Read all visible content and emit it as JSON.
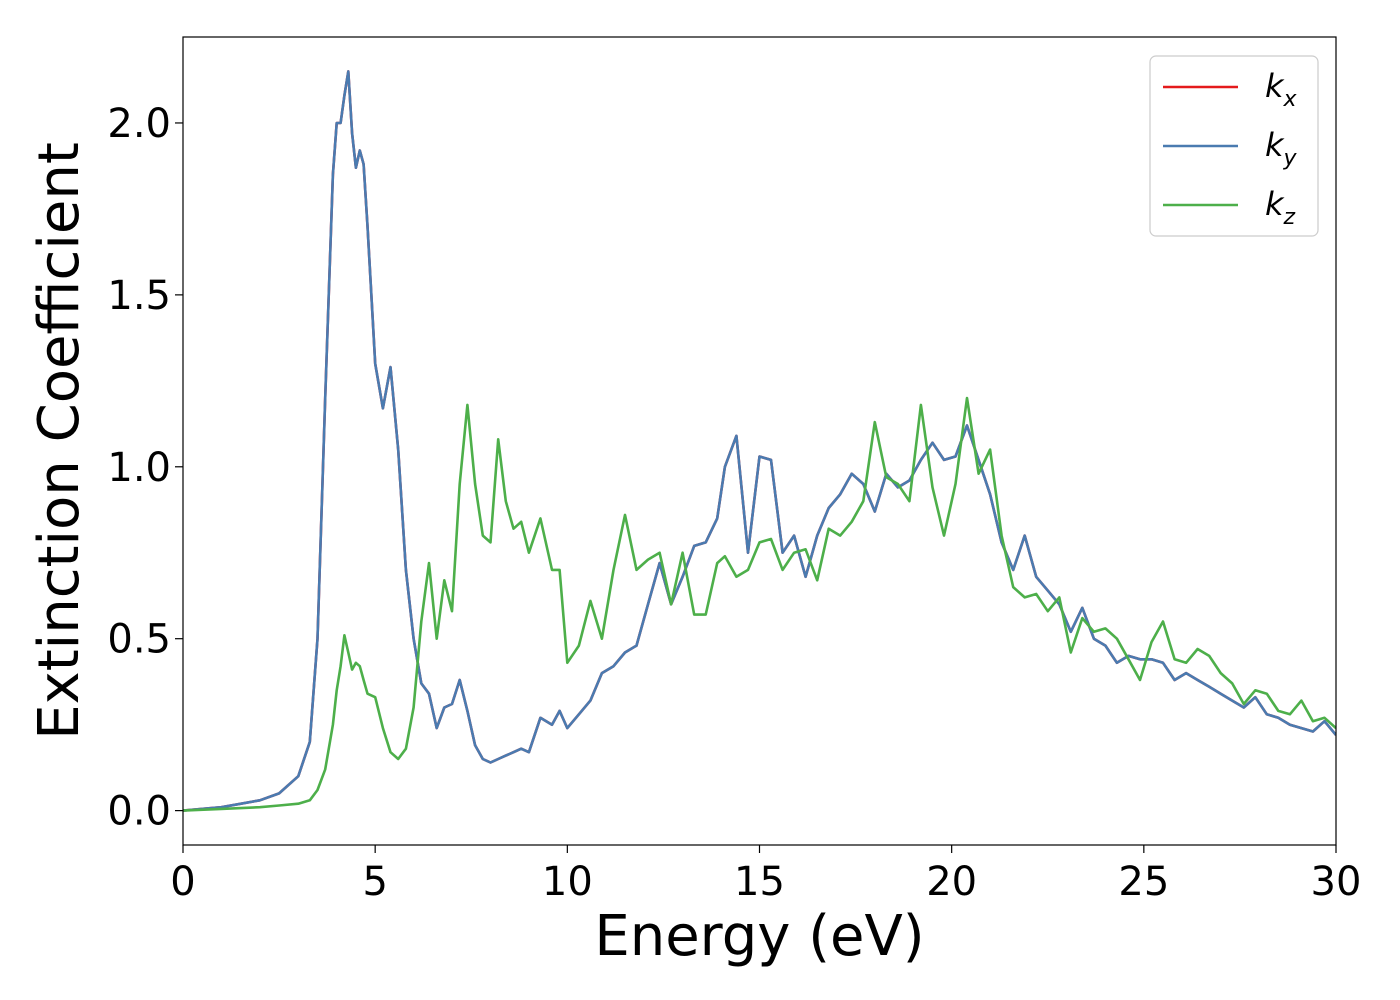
{
  "chart_data": {
    "type": "line",
    "xlabel": "Energy (eV)",
    "ylabel": "Extinction Coefficient",
    "xlim": [
      0,
      30
    ],
    "ylim": [
      -0.1,
      2.25
    ],
    "xticks": [
      0,
      5,
      10,
      15,
      20,
      25,
      30
    ],
    "xtick_labels": [
      "0",
      "5",
      "10",
      "15",
      "20",
      "25",
      "30"
    ],
    "yticks": [
      0.0,
      0.5,
      1.0,
      1.5,
      2.0
    ],
    "ytick_labels": [
      "0.0",
      "0.5",
      "1.0",
      "1.5",
      "2.0"
    ],
    "grid": false,
    "legend_position": "top-right",
    "series": [
      {
        "name": "kx",
        "legend_main": "k",
        "legend_sub": "x",
        "color": "#e41a1c",
        "x": [
          0,
          1,
          2,
          2.5,
          3,
          3.3,
          3.5,
          3.7,
          3.9,
          4.0,
          4.1,
          4.2,
          4.3,
          4.4,
          4.5,
          4.6,
          4.7,
          4.8,
          5.0,
          5.2,
          5.4,
          5.6,
          5.8,
          6.0,
          6.2,
          6.4,
          6.6,
          6.8,
          7.0,
          7.2,
          7.4,
          7.6,
          7.8,
          8.0,
          8.2,
          8.4,
          8.6,
          8.8,
          9.0,
          9.3,
          9.6,
          9.8,
          10.0,
          10.3,
          10.6,
          10.9,
          11.2,
          11.5,
          11.8,
          12.1,
          12.4,
          12.7,
          13.0,
          13.3,
          13.6,
          13.9,
          14.1,
          14.4,
          14.7,
          15.0,
          15.3,
          15.6,
          15.9,
          16.2,
          16.5,
          16.8,
          17.1,
          17.4,
          17.7,
          18.0,
          18.3,
          18.6,
          18.9,
          19.2,
          19.5,
          19.8,
          20.1,
          20.4,
          20.7,
          21.0,
          21.3,
          21.6,
          21.9,
          22.2,
          22.5,
          22.8,
          23.1,
          23.4,
          23.7,
          24.0,
          24.3,
          24.6,
          24.9,
          25.2,
          25.5,
          25.8,
          26.1,
          26.4,
          26.7,
          27.0,
          27.3,
          27.6,
          27.9,
          28.2,
          28.5,
          28.8,
          29.1,
          29.4,
          29.7,
          30.0
        ],
        "y": [
          0.0,
          0.01,
          0.03,
          0.05,
          0.1,
          0.2,
          0.5,
          1.2,
          1.85,
          2.0,
          2.0,
          2.08,
          2.15,
          1.97,
          1.87,
          1.92,
          1.88,
          1.7,
          1.3,
          1.17,
          1.29,
          1.05,
          0.7,
          0.5,
          0.37,
          0.34,
          0.24,
          0.3,
          0.31,
          0.38,
          0.29,
          0.19,
          0.15,
          0.14,
          0.15,
          0.16,
          0.17,
          0.18,
          0.17,
          0.27,
          0.25,
          0.29,
          0.24,
          0.28,
          0.32,
          0.4,
          0.42,
          0.46,
          0.48,
          0.6,
          0.72,
          0.6,
          0.68,
          0.77,
          0.78,
          0.85,
          1.0,
          1.09,
          0.75,
          1.03,
          1.02,
          0.75,
          0.8,
          0.68,
          0.8,
          0.88,
          0.92,
          0.98,
          0.95,
          0.87,
          0.98,
          0.94,
          0.96,
          1.02,
          1.07,
          1.02,
          1.03,
          1.12,
          1.02,
          0.92,
          0.78,
          0.7,
          0.8,
          0.68,
          0.64,
          0.6,
          0.52,
          0.59,
          0.5,
          0.48,
          0.43,
          0.45,
          0.44,
          0.44,
          0.43,
          0.38,
          0.4,
          0.38,
          0.36,
          0.34,
          0.32,
          0.3,
          0.33,
          0.28,
          0.27,
          0.25,
          0.24,
          0.23,
          0.26,
          0.22
        ]
      },
      {
        "name": "ky",
        "legend_main": "k",
        "legend_sub": "y",
        "color": "#4a7bb0",
        "x": [
          0,
          1,
          2,
          2.5,
          3,
          3.3,
          3.5,
          3.7,
          3.9,
          4.0,
          4.1,
          4.2,
          4.3,
          4.4,
          4.5,
          4.6,
          4.7,
          4.8,
          5.0,
          5.2,
          5.4,
          5.6,
          5.8,
          6.0,
          6.2,
          6.4,
          6.6,
          6.8,
          7.0,
          7.2,
          7.4,
          7.6,
          7.8,
          8.0,
          8.2,
          8.4,
          8.6,
          8.8,
          9.0,
          9.3,
          9.6,
          9.8,
          10.0,
          10.3,
          10.6,
          10.9,
          11.2,
          11.5,
          11.8,
          12.1,
          12.4,
          12.7,
          13.0,
          13.3,
          13.6,
          13.9,
          14.1,
          14.4,
          14.7,
          15.0,
          15.3,
          15.6,
          15.9,
          16.2,
          16.5,
          16.8,
          17.1,
          17.4,
          17.7,
          18.0,
          18.3,
          18.6,
          18.9,
          19.2,
          19.5,
          19.8,
          20.1,
          20.4,
          20.7,
          21.0,
          21.3,
          21.6,
          21.9,
          22.2,
          22.5,
          22.8,
          23.1,
          23.4,
          23.7,
          24.0,
          24.3,
          24.6,
          24.9,
          25.2,
          25.5,
          25.8,
          26.1,
          26.4,
          26.7,
          27.0,
          27.3,
          27.6,
          27.9,
          28.2,
          28.5,
          28.8,
          29.1,
          29.4,
          29.7,
          30.0
        ],
        "y": [
          0.0,
          0.01,
          0.03,
          0.05,
          0.1,
          0.2,
          0.5,
          1.2,
          1.85,
          2.0,
          2.0,
          2.08,
          2.15,
          1.97,
          1.87,
          1.92,
          1.88,
          1.7,
          1.3,
          1.17,
          1.29,
          1.05,
          0.7,
          0.5,
          0.37,
          0.34,
          0.24,
          0.3,
          0.31,
          0.38,
          0.29,
          0.19,
          0.15,
          0.14,
          0.15,
          0.16,
          0.17,
          0.18,
          0.17,
          0.27,
          0.25,
          0.29,
          0.24,
          0.28,
          0.32,
          0.4,
          0.42,
          0.46,
          0.48,
          0.6,
          0.72,
          0.6,
          0.68,
          0.77,
          0.78,
          0.85,
          1.0,
          1.09,
          0.75,
          1.03,
          1.02,
          0.75,
          0.8,
          0.68,
          0.8,
          0.88,
          0.92,
          0.98,
          0.95,
          0.87,
          0.98,
          0.94,
          0.96,
          1.02,
          1.07,
          1.02,
          1.03,
          1.12,
          1.02,
          0.92,
          0.78,
          0.7,
          0.8,
          0.68,
          0.64,
          0.6,
          0.52,
          0.59,
          0.5,
          0.48,
          0.43,
          0.45,
          0.44,
          0.44,
          0.43,
          0.38,
          0.4,
          0.38,
          0.36,
          0.34,
          0.32,
          0.3,
          0.33,
          0.28,
          0.27,
          0.25,
          0.24,
          0.23,
          0.26,
          0.22
        ]
      },
      {
        "name": "kz",
        "legend_main": "k",
        "legend_sub": "z",
        "color": "#4daf4a",
        "x": [
          0,
          1,
          2,
          2.5,
          3,
          3.3,
          3.5,
          3.7,
          3.9,
          4.0,
          4.1,
          4.2,
          4.3,
          4.4,
          4.5,
          4.6,
          4.7,
          4.8,
          5.0,
          5.2,
          5.4,
          5.6,
          5.8,
          6.0,
          6.2,
          6.4,
          6.6,
          6.8,
          7.0,
          7.2,
          7.4,
          7.6,
          7.8,
          8.0,
          8.2,
          8.4,
          8.6,
          8.8,
          9.0,
          9.3,
          9.6,
          9.8,
          10.0,
          10.3,
          10.6,
          10.9,
          11.2,
          11.5,
          11.8,
          12.1,
          12.4,
          12.7,
          13.0,
          13.3,
          13.6,
          13.9,
          14.1,
          14.4,
          14.7,
          15.0,
          15.3,
          15.6,
          15.9,
          16.2,
          16.5,
          16.8,
          17.1,
          17.4,
          17.7,
          18.0,
          18.3,
          18.6,
          18.9,
          19.2,
          19.5,
          19.8,
          20.1,
          20.4,
          20.7,
          21.0,
          21.3,
          21.6,
          21.9,
          22.2,
          22.5,
          22.8,
          23.1,
          23.4,
          23.7,
          24.0,
          24.3,
          24.6,
          24.9,
          25.2,
          25.5,
          25.8,
          26.1,
          26.4,
          26.7,
          27.0,
          27.3,
          27.6,
          27.9,
          28.2,
          28.5,
          28.8,
          29.1,
          29.4,
          29.7,
          30.0
        ],
        "y": [
          0.0,
          0.005,
          0.01,
          0.015,
          0.02,
          0.03,
          0.06,
          0.12,
          0.25,
          0.35,
          0.42,
          0.51,
          0.46,
          0.41,
          0.43,
          0.42,
          0.38,
          0.34,
          0.33,
          0.24,
          0.17,
          0.15,
          0.18,
          0.3,
          0.55,
          0.72,
          0.5,
          0.67,
          0.58,
          0.95,
          1.18,
          0.95,
          0.8,
          0.78,
          1.08,
          0.9,
          0.82,
          0.84,
          0.75,
          0.85,
          0.7,
          0.7,
          0.43,
          0.48,
          0.61,
          0.5,
          0.7,
          0.86,
          0.7,
          0.73,
          0.75,
          0.6,
          0.75,
          0.57,
          0.57,
          0.72,
          0.74,
          0.68,
          0.7,
          0.78,
          0.79,
          0.7,
          0.75,
          0.76,
          0.67,
          0.82,
          0.8,
          0.84,
          0.9,
          1.13,
          0.97,
          0.95,
          0.9,
          1.18,
          0.94,
          0.8,
          0.95,
          1.2,
          0.98,
          1.05,
          0.8,
          0.65,
          0.62,
          0.63,
          0.58,
          0.62,
          0.46,
          0.56,
          0.52,
          0.53,
          0.5,
          0.44,
          0.38,
          0.49,
          0.55,
          0.44,
          0.43,
          0.47,
          0.45,
          0.4,
          0.37,
          0.31,
          0.35,
          0.34,
          0.29,
          0.28,
          0.32,
          0.26,
          0.27,
          0.24
        ]
      }
    ]
  }
}
